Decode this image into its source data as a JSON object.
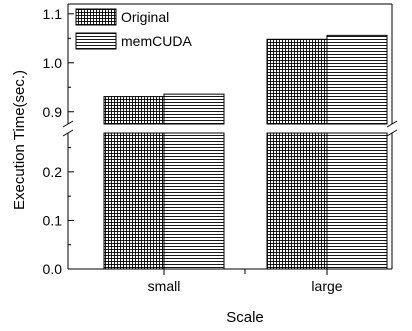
{
  "chart_data": {
    "type": "bar",
    "categories": [
      "small",
      "large"
    ],
    "series": [
      {
        "name": "Original",
        "values": [
          0.931,
          1.048
        ],
        "pattern": "grid"
      },
      {
        "name": "memCUDA",
        "values": [
          0.936,
          1.056
        ],
        "pattern": "horizontal-lines"
      }
    ],
    "title": "",
    "xlabel": "Scale",
    "ylabel": "Execution Time(sec.)",
    "broken_axis": true,
    "lower_segment": {
      "ylim": [
        0.0,
        0.28
      ],
      "ticks": [
        0.0,
        0.1,
        0.2
      ],
      "tick_labels": [
        "0.0",
        "0.1",
        "0.2"
      ]
    },
    "upper_segment": {
      "ylim": [
        0.875,
        1.12
      ],
      "ticks": [
        0.9,
        1.0,
        1.1
      ],
      "tick_labels": [
        "0.9",
        "1.0",
        "1.1"
      ]
    },
    "legend_position": "top-left",
    "grid": false,
    "bar_color": "#000000",
    "background": "#ffffff"
  }
}
